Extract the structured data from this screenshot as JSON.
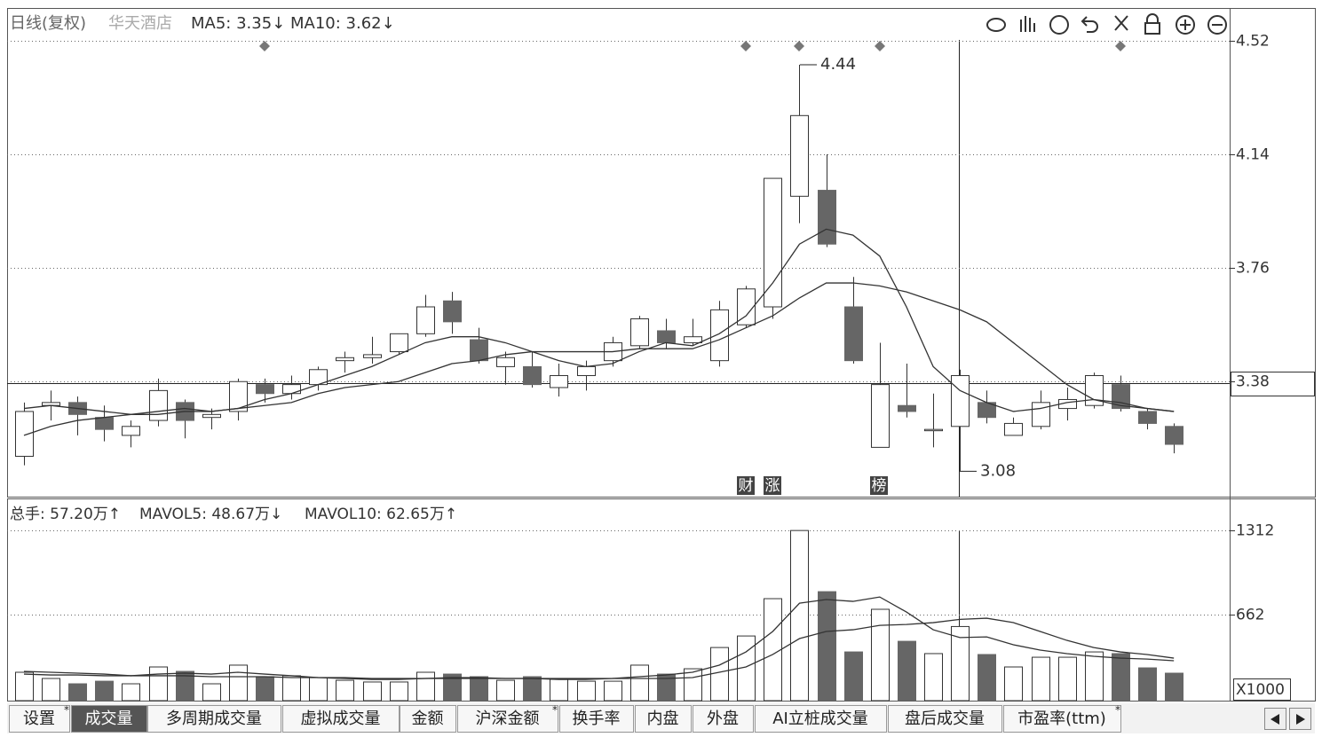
{
  "chart_data": [
    {
      "type": "candlestick",
      "title": "日线(复权)",
      "subtitle": "华天酒店",
      "categories": [
        null,
        null,
        null,
        null,
        null,
        null,
        null,
        null,
        null,
        null,
        null,
        null,
        null,
        null,
        null,
        null,
        null,
        null,
        null,
        null,
        null,
        null,
        null,
        null,
        null,
        null,
        null,
        null,
        null,
        null,
        null,
        null,
        null,
        null,
        null,
        null,
        null,
        null,
        null,
        null,
        null,
        null,
        null,
        null
      ],
      "open": [
        3.13,
        3.3,
        3.31,
        3.26,
        3.2,
        3.25,
        3.31,
        3.26,
        3.28,
        3.37,
        3.34,
        3.37,
        3.45,
        3.46,
        3.48,
        3.54,
        3.65,
        3.52,
        3.43,
        3.43,
        3.36,
        3.4,
        3.45,
        3.5,
        3.55,
        3.51,
        3.45,
        3.57,
        3.63,
        4.0,
        4.02,
        3.63,
        3.16,
        3.3,
        3.22,
        3.23,
        3.31,
        3.2,
        3.23,
        3.29,
        3.3,
        3.37,
        3.28,
        3.23
      ],
      "high": [
        3.31,
        3.35,
        3.33,
        3.3,
        3.25,
        3.39,
        3.32,
        3.29,
        3.39,
        3.39,
        3.4,
        3.43,
        3.48,
        3.53,
        3.54,
        3.67,
        3.68,
        3.56,
        3.48,
        3.48,
        3.44,
        3.45,
        3.53,
        3.6,
        3.59,
        3.59,
        3.65,
        3.7,
        4.06,
        4.44,
        4.14,
        3.73,
        3.51,
        3.44,
        3.34,
        3.42,
        3.35,
        3.26,
        3.35,
        3.36,
        3.41,
        3.4,
        3.29,
        3.24
      ],
      "low": [
        3.1,
        3.25,
        3.2,
        3.18,
        3.16,
        3.23,
        3.19,
        3.22,
        3.25,
        3.31,
        3.32,
        3.35,
        3.41,
        3.44,
        3.47,
        3.53,
        3.54,
        3.44,
        3.37,
        3.36,
        3.33,
        3.35,
        3.43,
        3.49,
        3.49,
        3.5,
        3.43,
        3.56,
        3.59,
        3.91,
        3.83,
        3.44,
        3.16,
        3.26,
        3.16,
        3.08,
        3.24,
        3.2,
        3.22,
        3.25,
        3.29,
        3.28,
        3.22,
        3.14
      ],
      "close": [
        3.28,
        3.31,
        3.27,
        3.22,
        3.23,
        3.35,
        3.25,
        3.27,
        3.38,
        3.34,
        3.37,
        3.42,
        3.46,
        3.47,
        3.54,
        3.63,
        3.58,
        3.45,
        3.46,
        3.37,
        3.4,
        3.43,
        3.51,
        3.59,
        3.51,
        3.53,
        3.62,
        3.69,
        4.06,
        4.27,
        3.84,
        3.45,
        3.37,
        3.28,
        3.22,
        3.4,
        3.26,
        3.24,
        3.31,
        3.32,
        3.4,
        3.29,
        3.24,
        3.17
      ],
      "series": [
        {
          "name": "MA5: 3.35↓",
          "color": "#333333",
          "values": [
            3.29,
            3.3,
            3.29,
            3.28,
            3.27,
            3.28,
            3.29,
            3.28,
            3.29,
            3.32,
            3.34,
            3.37,
            3.4,
            3.43,
            3.47,
            3.51,
            3.53,
            3.53,
            3.51,
            3.48,
            3.45,
            3.43,
            3.44,
            3.48,
            3.51,
            3.5,
            3.54,
            3.6,
            3.71,
            3.84,
            3.89,
            3.87,
            3.8,
            3.63,
            3.43,
            3.35,
            3.31,
            3.28,
            3.29,
            3.31,
            3.32,
            3.31,
            3.29,
            3.28
          ]
        },
        {
          "name": "MA10: 3.62↓",
          "color": "#333333",
          "values": [
            3.2,
            3.23,
            3.25,
            3.26,
            3.27,
            3.27,
            3.28,
            3.28,
            3.29,
            3.3,
            3.31,
            3.34,
            3.36,
            3.37,
            3.38,
            3.41,
            3.44,
            3.45,
            3.47,
            3.48,
            3.48,
            3.48,
            3.48,
            3.49,
            3.49,
            3.49,
            3.52,
            3.56,
            3.6,
            3.66,
            3.71,
            3.71,
            3.7,
            3.68,
            3.65,
            3.62,
            3.58,
            3.51,
            3.44,
            3.37,
            3.32,
            3.3,
            3.29,
            3.28
          ]
        }
      ],
      "up_color": "#ffffff",
      "down_color": "#666666",
      "ylim": [
        2.995,
        4.627
      ],
      "yticks": [
        3.38,
        3.76,
        4.14,
        4.52
      ],
      "grid": true,
      "high_label": 4.44,
      "low_label": 3.08,
      "badges": [
        "财",
        "涨",
        "榜"
      ]
    },
    {
      "type": "bar",
      "legend": [
        "总手: 57.20万↑",
        "MAVOL5: 48.67万↓",
        "MAVOL10: 62.65万↑"
      ],
      "categories": [
        null,
        null,
        null,
        null,
        null,
        null,
        null,
        null,
        null,
        null,
        null,
        null,
        null,
        null,
        null,
        null,
        null,
        null,
        null,
        null,
        null,
        null,
        null,
        null,
        null,
        null,
        null,
        null,
        null,
        null,
        null,
        null,
        null,
        null,
        null,
        null,
        null,
        null,
        null,
        null,
        null,
        null,
        null,
        null
      ],
      "values": [
        219,
        171,
        130,
        150,
        130,
        260,
        226,
        130,
        274,
        185,
        192,
        178,
        157,
        144,
        144,
        219,
        205,
        185,
        157,
        185,
        164,
        150,
        150,
        274,
        205,
        246,
        410,
        499,
        787,
        1313,
        841,
        376,
        705,
        458,
        363,
        572,
        356,
        260,
        335,
        335,
        376,
        363,
        253,
        212
      ],
      "series": [
        {
          "name": "MAVOL5",
          "color": "#333333",
          "values": [
            226,
            219,
            212,
            205,
            192,
            205,
            212,
            205,
            219,
            205,
            192,
            178,
            171,
            164,
            164,
            171,
            178,
            178,
            171,
            171,
            164,
            164,
            171,
            185,
            198,
            219,
            274,
            376,
            534,
            752,
            780,
            766,
            800,
            684,
            547,
            487,
            492,
            431,
            390,
            363,
            342,
            328,
            321,
            308
          ]
        },
        {
          "name": "MAVOL10",
          "color": "#333333",
          "values": [
            205,
            198,
            198,
            192,
            192,
            192,
            192,
            185,
            185,
            185,
            178,
            178,
            178,
            171,
            171,
            171,
            171,
            171,
            171,
            171,
            171,
            171,
            171,
            171,
            171,
            178,
            219,
            260,
            356,
            479,
            534,
            547,
            581,
            588,
            602,
            627,
            636,
            602,
            534,
            465,
            410,
            376,
            356,
            328
          ]
        }
      ],
      "ylim": [
        0,
        1540
      ],
      "yticks": [
        662,
        1312
      ],
      "grid": true,
      "unit_label": "X1000"
    }
  ],
  "tabs": [
    {
      "label": "设置",
      "mark": "*"
    },
    {
      "label": "成交量",
      "selected": true
    },
    {
      "label": "多周期成交量"
    },
    {
      "label": "虚拟成交量"
    },
    {
      "label": "金额"
    },
    {
      "label": "沪深金额",
      "mark": "*"
    },
    {
      "label": "换手率"
    },
    {
      "label": "内盘"
    },
    {
      "label": "外盘"
    },
    {
      "label": "AI立桩成交量"
    },
    {
      "label": "盘后成交量"
    },
    {
      "label": "市盈率(ttm)",
      "mark": "*"
    }
  ]
}
